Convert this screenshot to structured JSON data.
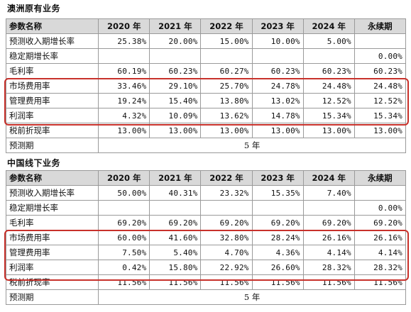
{
  "sections": [
    {
      "title": "澳洲原有业务",
      "header": [
        "参数名称",
        "2020 年",
        "2021 年",
        "2022 年",
        "2023 年",
        "2024 年",
        "永续期"
      ],
      "rows": [
        {
          "label": "预测收入期增长率",
          "cells": [
            "25.38%",
            "20.00%",
            "15.00%",
            "10.00%",
            "5.00%",
            ""
          ]
        },
        {
          "label": "稳定期增长率",
          "cells": [
            "",
            "",
            "",
            "",
            "",
            "0.00%"
          ]
        },
        {
          "label": "毛利率",
          "cells": [
            "60.19%",
            "60.23%",
            "60.27%",
            "60.23%",
            "60.23%",
            "60.23%"
          ]
        },
        {
          "label": "市场费用率",
          "cells": [
            "33.46%",
            "29.10%",
            "25.70%",
            "24.78%",
            "24.48%",
            "24.48%"
          ]
        },
        {
          "label": "管理费用率",
          "cells": [
            "19.24%",
            "15.40%",
            "13.80%",
            "13.02%",
            "12.52%",
            "12.52%"
          ]
        },
        {
          "label": "利润率",
          "cells": [
            "4.32%",
            "10.09%",
            "13.62%",
            "14.78%",
            "15.34%",
            "15.34%"
          ]
        },
        {
          "label": "税前折现率",
          "cells": [
            "13.00%",
            "13.00%",
            "13.00%",
            "13.00%",
            "13.00%",
            "13.00%"
          ]
        }
      ],
      "period_label": "预测期",
      "period_value": "5 年"
    },
    {
      "title": "中国线下业务",
      "header": [
        "参数名称",
        "2020 年",
        "2021 年",
        "2022 年",
        "2023 年",
        "2024 年",
        "永续期"
      ],
      "rows": [
        {
          "label": "预测收入期增长率",
          "cells": [
            "50.00%",
            "40.31%",
            "23.32%",
            "15.35%",
            "7.40%",
            ""
          ]
        },
        {
          "label": "稳定期增长率",
          "cells": [
            "",
            "",
            "",
            "",
            "",
            "0.00%"
          ]
        },
        {
          "label": "毛利率",
          "cells": [
            "69.20%",
            "69.20%",
            "69.20%",
            "69.20%",
            "69.20%",
            "69.20%"
          ]
        },
        {
          "label": "市场费用率",
          "cells": [
            "60.00%",
            "41.60%",
            "32.80%",
            "28.24%",
            "26.16%",
            "26.16%"
          ]
        },
        {
          "label": "管理费用率",
          "cells": [
            "7.50%",
            "5.40%",
            "4.70%",
            "4.36%",
            "4.14%",
            "4.14%"
          ]
        },
        {
          "label": "利润率",
          "cells": [
            "0.42%",
            "15.80%",
            "22.92%",
            "26.60%",
            "28.32%",
            "28.32%"
          ]
        },
        {
          "label": "税前折现率",
          "cells": [
            "11.56%",
            "11.56%",
            "11.56%",
            "11.56%",
            "11.56%",
            "11.56%"
          ]
        }
      ],
      "period_label": "预测期",
      "period_value": "5 年"
    }
  ],
  "highlight_color": "#c8312b",
  "header_bg": "#d9d9d9"
}
